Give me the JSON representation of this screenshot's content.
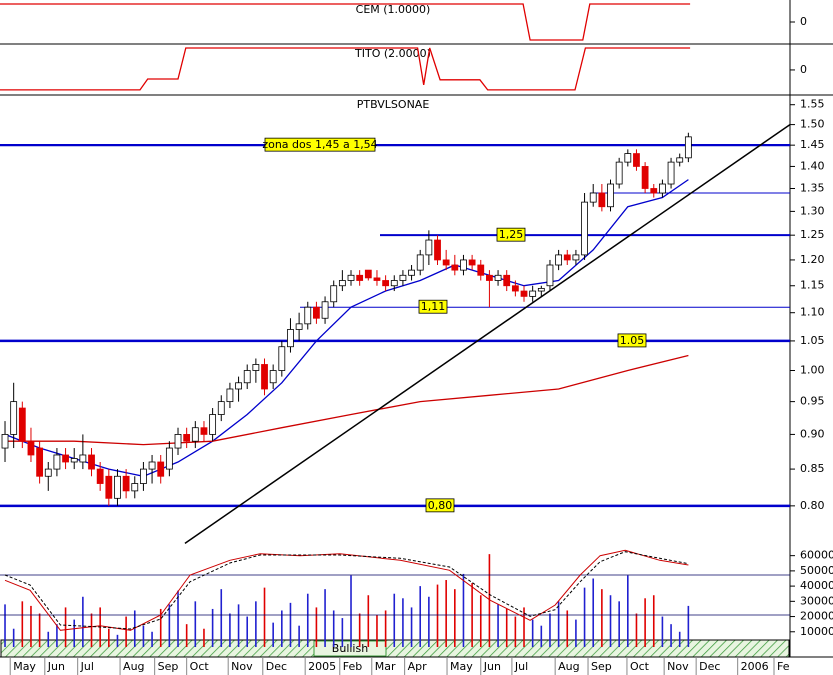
{
  "chart_data": [
    {
      "type": "line",
      "title": "CEM (1.0000)",
      "color": "#e00000",
      "xlim": [
        -0.58,
        90.75
      ],
      "ylim": [
        -1.222,
        1.222
      ],
      "yticks": [
        0
      ],
      "x": [
        -0.58,
        59.9,
        60.7,
        66.8,
        67.6,
        79.2
      ],
      "values": [
        1,
        1,
        -1,
        -1,
        1,
        1
      ]
    },
    {
      "type": "line",
      "title": "TITO (2.0000)",
      "color": "#e00000",
      "xlim": [
        -0.58,
        90.75
      ],
      "ylim": [
        -1.14,
        1.18
      ],
      "yticks": [
        0
      ],
      "x": [
        -0.58,
        15.6,
        16.5,
        20.0,
        20.9,
        47.7,
        48.4,
        49.1,
        50.3,
        54.9,
        55.8,
        65.9,
        67.1,
        79.2
      ],
      "values": [
        -0.91,
        -0.91,
        -0.41,
        -0.41,
        1,
        1,
        -0.68,
        1,
        -0.45,
        -0.45,
        -0.91,
        -0.91,
        1,
        1
      ]
    },
    {
      "type": "candlestick",
      "title": "PTBVLSONAE",
      "log_scale": true,
      "xlim": [
        -0.58,
        90.75
      ],
      "ylim": [
        0.75,
        1.575
      ],
      "yticks": [
        {
          "value": 0.8,
          "label": "0.80"
        },
        {
          "value": 0.85,
          "label": "0.85"
        },
        {
          "value": 0.9,
          "label": "0.90"
        },
        {
          "value": 0.95,
          "label": "0.95"
        },
        {
          "value": 1.0,
          "label": "1.00"
        },
        {
          "value": 1.05,
          "label": "1.05"
        },
        {
          "value": 1.1,
          "label": "1.10"
        },
        {
          "value": 1.15,
          "label": "1.15"
        },
        {
          "value": 1.2,
          "label": "1.20"
        },
        {
          "value": 1.25,
          "label": "1.25"
        },
        {
          "value": 1.3,
          "label": "1.30"
        },
        {
          "value": 1.35,
          "label": "1.35"
        },
        {
          "value": 1.4,
          "label": "1.40"
        },
        {
          "value": 1.45,
          "label": "1.45"
        },
        {
          "value": 1.5,
          "label": "1.50"
        },
        {
          "value": 1.55,
          "label": "1.55"
        }
      ],
      "candles": [
        [
          0.88,
          0.92,
          0.86,
          0.9
        ],
        [
          0.9,
          0.98,
          0.88,
          0.95
        ],
        [
          0.94,
          0.95,
          0.88,
          0.89
        ],
        [
          0.89,
          0.91,
          0.86,
          0.87
        ],
        [
          0.88,
          0.89,
          0.83,
          0.84
        ],
        [
          0.84,
          0.86,
          0.82,
          0.85
        ],
        [
          0.85,
          0.88,
          0.84,
          0.87
        ],
        [
          0.87,
          0.88,
          0.85,
          0.86
        ],
        [
          0.86,
          0.88,
          0.85,
          0.865
        ],
        [
          0.86,
          0.9,
          0.85,
          0.87
        ],
        [
          0.87,
          0.88,
          0.84,
          0.85
        ],
        [
          0.85,
          0.86,
          0.82,
          0.83
        ],
        [
          0.84,
          0.85,
          0.8,
          0.81
        ],
        [
          0.81,
          0.85,
          0.8,
          0.84
        ],
        [
          0.84,
          0.85,
          0.81,
          0.82
        ],
        [
          0.82,
          0.84,
          0.81,
          0.83
        ],
        [
          0.83,
          0.86,
          0.82,
          0.85
        ],
        [
          0.85,
          0.87,
          0.83,
          0.86
        ],
        [
          0.86,
          0.87,
          0.83,
          0.84
        ],
        [
          0.85,
          0.89,
          0.84,
          0.88
        ],
        [
          0.88,
          0.91,
          0.87,
          0.9
        ],
        [
          0.9,
          0.91,
          0.88,
          0.89
        ],
        [
          0.89,
          0.92,
          0.88,
          0.91
        ],
        [
          0.91,
          0.92,
          0.89,
          0.9
        ],
        [
          0.9,
          0.94,
          0.89,
          0.93
        ],
        [
          0.93,
          0.96,
          0.92,
          0.95
        ],
        [
          0.95,
          0.98,
          0.94,
          0.97
        ],
        [
          0.97,
          0.99,
          0.95,
          0.98
        ],
        [
          0.98,
          1.01,
          0.97,
          1.0
        ],
        [
          1.0,
          1.02,
          0.98,
          1.01
        ],
        [
          1.01,
          1.02,
          0.96,
          0.97
        ],
        [
          0.98,
          1.01,
          0.97,
          1.0
        ],
        [
          1.0,
          1.05,
          0.99,
          1.04
        ],
        [
          1.04,
          1.09,
          1.03,
          1.07
        ],
        [
          1.07,
          1.1,
          1.05,
          1.08
        ],
        [
          1.08,
          1.12,
          1.07,
          1.11
        ],
        [
          1.11,
          1.12,
          1.08,
          1.09
        ],
        [
          1.09,
          1.13,
          1.08,
          1.12
        ],
        [
          1.12,
          1.16,
          1.11,
          1.15
        ],
        [
          1.15,
          1.18,
          1.14,
          1.16
        ],
        [
          1.16,
          1.18,
          1.15,
          1.17
        ],
        [
          1.17,
          1.18,
          1.15,
          1.16
        ],
        [
          1.18,
          1.18,
          1.16,
          1.165
        ],
        [
          1.165,
          1.18,
          1.15,
          1.16
        ],
        [
          1.16,
          1.17,
          1.14,
          1.15
        ],
        [
          1.15,
          1.17,
          1.14,
          1.16
        ],
        [
          1.16,
          1.18,
          1.15,
          1.17
        ],
        [
          1.17,
          1.19,
          1.16,
          1.18
        ],
        [
          1.18,
          1.22,
          1.17,
          1.21
        ],
        [
          1.21,
          1.26,
          1.19,
          1.24
        ],
        [
          1.24,
          1.25,
          1.19,
          1.2
        ],
        [
          1.2,
          1.22,
          1.18,
          1.19
        ],
        [
          1.19,
          1.21,
          1.17,
          1.18
        ],
        [
          1.18,
          1.21,
          1.17,
          1.2
        ],
        [
          1.2,
          1.21,
          1.18,
          1.19
        ],
        [
          1.19,
          1.2,
          1.16,
          1.17
        ],
        [
          1.17,
          1.18,
          1.11,
          1.16
        ],
        [
          1.16,
          1.18,
          1.15,
          1.17
        ],
        [
          1.17,
          1.18,
          1.14,
          1.15
        ],
        [
          1.15,
          1.16,
          1.13,
          1.14
        ],
        [
          1.14,
          1.15,
          1.12,
          1.13
        ],
        [
          1.13,
          1.15,
          1.12,
          1.14
        ],
        [
          1.14,
          1.15,
          1.13,
          1.145
        ],
        [
          1.15,
          1.2,
          1.14,
          1.19
        ],
        [
          1.19,
          1.22,
          1.18,
          1.21
        ],
        [
          1.21,
          1.22,
          1.19,
          1.2
        ],
        [
          1.2,
          1.22,
          1.19,
          1.21
        ],
        [
          1.21,
          1.34,
          1.2,
          1.32
        ],
        [
          1.32,
          1.36,
          1.31,
          1.34
        ],
        [
          1.34,
          1.36,
          1.3,
          1.31
        ],
        [
          1.31,
          1.37,
          1.3,
          1.36
        ],
        [
          1.36,
          1.42,
          1.35,
          1.41
        ],
        [
          1.41,
          1.44,
          1.4,
          1.43
        ],
        [
          1.43,
          1.44,
          1.39,
          1.4
        ],
        [
          1.4,
          1.41,
          1.34,
          1.35
        ],
        [
          1.35,
          1.36,
          1.33,
          1.34
        ],
        [
          1.34,
          1.37,
          1.33,
          1.36
        ],
        [
          1.36,
          1.42,
          1.35,
          1.41
        ],
        [
          1.41,
          1.43,
          1.4,
          1.42
        ],
        [
          1.42,
          1.48,
          1.41,
          1.47
        ]
      ],
      "averages": [
        {
          "color": "#0000cc",
          "x": [
            0,
            4,
            8,
            12,
            16,
            20,
            24,
            28,
            32,
            36,
            40,
            44,
            48,
            52,
            56,
            60,
            64,
            68,
            72,
            76,
            79
          ],
          "values": [
            0.9,
            0.88,
            0.865,
            0.85,
            0.84,
            0.86,
            0.89,
            0.93,
            0.98,
            1.05,
            1.11,
            1.14,
            1.16,
            1.19,
            1.17,
            1.15,
            1.16,
            1.22,
            1.31,
            1.33,
            1.37
          ]
        },
        {
          "color": "#cc0000",
          "x": [
            0,
            8,
            16,
            24,
            32,
            40,
            48,
            56,
            64,
            72,
            79
          ],
          "values": [
            0.89,
            0.89,
            0.885,
            0.89,
            0.91,
            0.93,
            0.95,
            0.96,
            0.97,
            1.0,
            1.025
          ]
        }
      ],
      "levels": [
        {
          "value": 1.45,
          "label": "zona dos 1,45 a 1,54"
        },
        {
          "value": 1.34
        },
        {
          "value": 1.25,
          "label": "1,25"
        },
        {
          "value": 1.11,
          "label": "1,11"
        },
        {
          "value": 1.05,
          "label": "1.05"
        },
        {
          "value": 0.8,
          "label": "0,80"
        }
      ],
      "trendline": {
        "x": [
          20.8,
          90.75
        ],
        "values": [
          0.752,
          1.5
        ]
      }
    },
    {
      "type": "bar",
      "status": "Bullish",
      "xlim": [
        -0.58,
        90.75
      ],
      "ylim": [
        0,
        67000
      ],
      "yticks": [
        10000,
        20000,
        30000,
        40000,
        50000,
        60000
      ],
      "values": [
        28000,
        12000,
        30000,
        27000,
        22000,
        10000,
        15000,
        26000,
        18000,
        33000,
        22000,
        26000,
        12000,
        8000,
        20000,
        24000,
        14000,
        10000,
        25000,
        28000,
        37000,
        15000,
        30000,
        12000,
        25000,
        38000,
        22000,
        28000,
        20000,
        30000,
        39000,
        16000,
        24000,
        29000,
        14000,
        35000,
        26000,
        38000,
        24000,
        19000,
        47000,
        22000,
        34000,
        21000,
        24000,
        35000,
        32000,
        26000,
        40000,
        33000,
        41000,
        44000,
        38000,
        48000,
        42000,
        34000,
        61000,
        28000,
        25000,
        20000,
        26000,
        18000,
        14000,
        22000,
        30000,
        24000,
        18000,
        39000,
        45000,
        38000,
        34000,
        30000,
        47000,
        22000,
        32000,
        34000,
        20000,
        15000,
        10000,
        27000
      ],
      "osc_lim": [
        -28,
        125
      ],
      "osc_levels": [
        80,
        20
      ],
      "oscillator": [
        {
          "color": "#cc0000",
          "dashed": false,
          "x": [
            0,
            2.9,
            6.4,
            11,
            14.5,
            18,
            21.4,
            26,
            29.5,
            34.1,
            38.7,
            45.7,
            51.4,
            56.1,
            60.7,
            63.6,
            66.5,
            68.8,
            71.7,
            75.7,
            79
          ],
          "values": [
            72,
            57,
            -3,
            4,
            -3,
            20,
            80,
            102,
            112,
            109,
            112,
            102,
            87,
            42,
            12,
            35,
            80,
            109,
            117,
            102,
            95
          ]
        },
        {
          "color": "#000000",
          "dashed": true,
          "x": [
            0,
            2.9,
            6.4,
            11,
            14.5,
            18,
            21.4,
            26,
            29.5,
            34.1,
            38.7,
            45.7,
            51.4,
            56.1,
            60.7,
            63.6,
            66.5,
            68.8,
            71.7,
            75.7,
            79
          ],
          "values": [
            80,
            65,
            5,
            2,
            -1,
            14,
            70,
            98,
            110,
            110,
            110,
            105,
            92,
            50,
            18,
            28,
            70,
            100,
            115,
            105,
            97
          ]
        }
      ],
      "xticks": [
        {
          "value": 0.6,
          "label": "May"
        },
        {
          "value": 4.6,
          "label": "Jun"
        },
        {
          "value": 8.4,
          "label": "Jul"
        },
        {
          "value": 13.3,
          "label": "Aug"
        },
        {
          "value": 17.3,
          "label": "Sep"
        },
        {
          "value": 21.0,
          "label": "Oct"
        },
        {
          "value": 25.8,
          "label": "Nov"
        },
        {
          "value": 29.8,
          "label": "Dec"
        },
        {
          "value": 34.7,
          "label": "2005"
        },
        {
          "value": 38.7,
          "label": "Feb"
        },
        {
          "value": 42.4,
          "label": "Mar"
        },
        {
          "value": 46.2,
          "label": "Apr"
        },
        {
          "value": 51.1,
          "label": "May"
        },
        {
          "value": 55.0,
          "label": "Jun"
        },
        {
          "value": 58.6,
          "label": "Jul"
        },
        {
          "value": 63.6,
          "label": "Aug"
        },
        {
          "value": 67.4,
          "label": "Sep"
        },
        {
          "value": 71.9,
          "label": "Oct"
        },
        {
          "value": 76.2,
          "label": "Nov"
        },
        {
          "value": 79.9,
          "label": "Dec"
        },
        {
          "value": 84.7,
          "label": "2006"
        },
        {
          "value": 88.9,
          "label": "Fe"
        }
      ]
    }
  ]
}
